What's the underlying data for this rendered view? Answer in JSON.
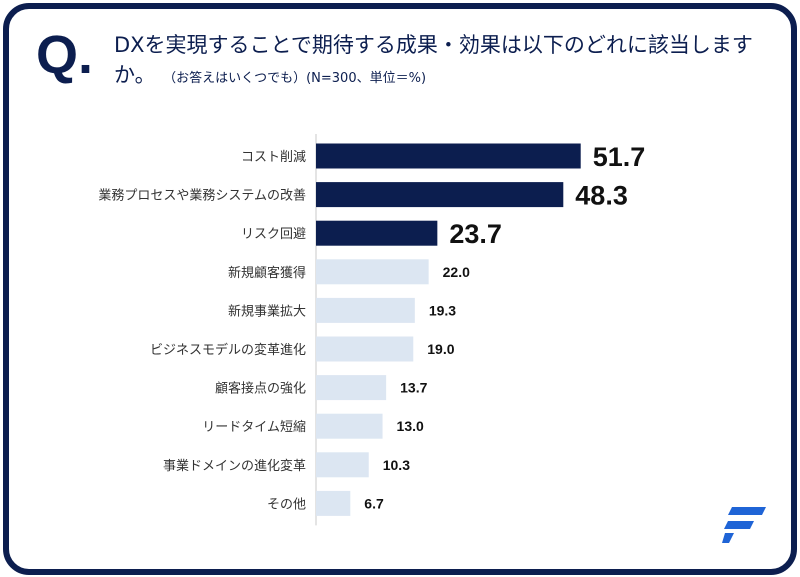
{
  "question": {
    "mark": "Q.",
    "text": "DXを実現することで期待する成果・効果は以下のどれに該当しますか。",
    "note": "（お答えはいくつでも）(N=300、単位＝%)"
  },
  "colors": {
    "highlight": "#0c1e4f",
    "normal": "#dce6f2",
    "frame": "#0c1e4f",
    "logo": "#1f64d6"
  },
  "chart_data": {
    "type": "bar",
    "orientation": "horizontal",
    "categories": [
      "コスト削減",
      "業務プロセスや業務システムの改善",
      "リスク回避",
      "新規顧客獲得",
      "新規事業拡大",
      "ビジネスモデルの変革進化",
      "顧客接点の強化",
      "リードタイム短縮",
      "事業ドメインの進化変革",
      "その他"
    ],
    "values": [
      51.7,
      48.3,
      23.7,
      22.0,
      19.3,
      19.0,
      13.7,
      13.0,
      10.3,
      6.7
    ],
    "labels": [
      "51.7",
      "48.3",
      "23.7",
      "22.0",
      "19.3",
      "19.0",
      "13.7",
      "13.0",
      "10.3",
      "6.7"
    ],
    "highlighted": [
      true,
      true,
      true,
      false,
      false,
      false,
      false,
      false,
      false,
      false
    ],
    "unit": "%",
    "xlim": [
      0,
      60
    ],
    "grid": false
  }
}
